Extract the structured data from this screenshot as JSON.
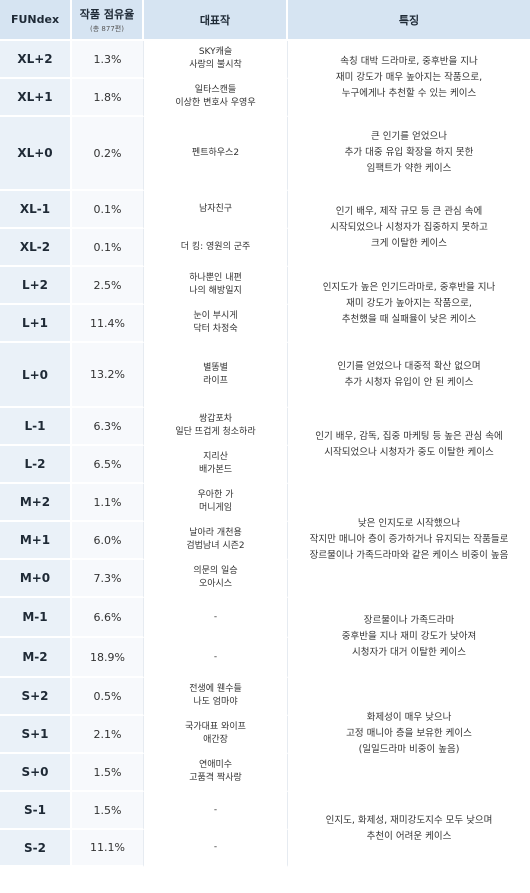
{
  "header": {
    "col_grade": "FUNdex",
    "col_share": "작품 점유율",
    "col_share_sub": "(총 877편)",
    "col_works": "대표작",
    "col_desc": "특징"
  },
  "rows": [
    {
      "grade": "XL+2",
      "share": "1.3%",
      "works": [
        "SKY캐슬",
        "사랑의 불시착"
      ]
    },
    {
      "grade": "XL+1",
      "share": "1.8%",
      "works": [
        "일타스캔들",
        "이상한 변호사 우영우"
      ]
    },
    {
      "grade": "XL+0",
      "share": "0.2%",
      "works": [
        "펜트하우스2"
      ]
    },
    {
      "grade": "XL-1",
      "share": "0.1%",
      "works": [
        "남자친구"
      ]
    },
    {
      "grade": "XL-2",
      "share": "0.1%",
      "works": [
        "더 킹: 영원의 군주"
      ]
    },
    {
      "grade": "L+2",
      "share": "2.5%",
      "works": [
        "하나뿐인 내편",
        "나의 해방일지"
      ]
    },
    {
      "grade": "L+1",
      "share": "11.4%",
      "works": [
        "눈이 부시게",
        "닥터 차정숙"
      ]
    },
    {
      "grade": "L+0",
      "share": "13.2%",
      "works": [
        "별똥별",
        "라이프"
      ]
    },
    {
      "grade": "L-1",
      "share": "6.3%",
      "works": [
        "쌍갑포차",
        "일단 뜨겁게 청소하라"
      ]
    },
    {
      "grade": "L-2",
      "share": "6.5%",
      "works": [
        "지리산",
        "배가본드"
      ]
    },
    {
      "grade": "M+2",
      "share": "1.1%",
      "works": [
        "우아한 가",
        "머니게임"
      ]
    },
    {
      "grade": "M+1",
      "share": "6.0%",
      "works": [
        "날아라 개천용",
        "검법남녀 시즌2"
      ]
    },
    {
      "grade": "M+0",
      "share": "7.3%",
      "works": [
        "의문의 일승",
        "오아시스"
      ]
    },
    {
      "grade": "M-1",
      "share": "6.6%",
      "works": [
        "-"
      ]
    },
    {
      "grade": "M-2",
      "share": "18.9%",
      "works": [
        "-"
      ]
    },
    {
      "grade": "S+2",
      "share": "0.5%",
      "works": [
        "전생에 웬수들",
        "나도 엄마야"
      ]
    },
    {
      "grade": "S+1",
      "share": "2.1%",
      "works": [
        "국가대표 와이프",
        "애간장"
      ]
    },
    {
      "grade": "S+0",
      "share": "1.5%",
      "works": [
        "연애미수",
        "고품격 짝사랑"
      ]
    },
    {
      "grade": "S-1",
      "share": "1.5%",
      "works": [
        "-"
      ]
    },
    {
      "grade": "S-2",
      "share": "11.1%",
      "works": [
        "-"
      ]
    }
  ],
  "descriptions": [
    [
      "속칭 대박 드라마로, 중후반을 지나",
      "재미 강도가 매우 높아지는 작품으로,",
      "누구에게나 추천할 수 있는 케이스"
    ],
    [
      "큰 인기를 얻었으나",
      "추가 대중 유입 확장을 하지 못한",
      "임팩트가 약한 케이스"
    ],
    [
      "인기 배우, 제작 규모 등 큰 관심 속에",
      "시작되었으나 시청자가 집중하지 못하고",
      "크게 이탈한 케이스"
    ],
    [
      "인지도가 높은 인기드라마로, 중후반을 지나",
      "재미 강도가 높아지는 작품으로,",
      "추천했을 때 실패율이 낮은 케이스"
    ],
    [
      "인기를 얻었으나 대중적 확산 없으며",
      "추가 시청자 유입이 안 된 케이스"
    ],
    [
      "인기 배우, 감독, 집중 마케팅 등 높은 관심 속에",
      "시작되었으나 시청자가 중도 이탈한 케이스"
    ],
    [
      "낮은 인지도로 시작했으나",
      "작지만 매니아 층이 증가하거나 유지되는 작품들로",
      "장르물이나 가족드라마와 같은 케이스 비중이 높음"
    ],
    [
      "장르물이나 가족드라마",
      "중후반을 지나 재미 강도가 낮아져",
      "시청자가 대거 이탈한 케이스"
    ],
    [
      "화제성이 매우 낮으나",
      "고정 매니아 층을 보유한 케이스",
      "(일일드라마 비중이 높음)"
    ],
    [
      "인지도, 화제성, 재미강도지수 모두 낮으며",
      "추천이 어려운 케이스"
    ]
  ]
}
